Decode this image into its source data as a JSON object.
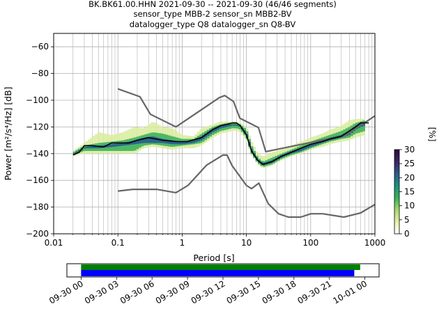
{
  "title_lines": [
    "BK.BK61.00.HHN   2021-09-30 -- 2021-09-30  (46/46 segments)",
    "sensor_type MBB-2 sensor_sn MBB2-BV",
    "datalogger_type Q8 datalogger_sn Q8-BV"
  ],
  "chart_data": {
    "type": "heatmap",
    "xlabel": "Period [s]",
    "ylabel": "Power [m²/s⁴/Hz] [dB]",
    "x_scale": "log",
    "xlim": [
      0.01,
      1000
    ],
    "ylim": [
      -200,
      -50
    ],
    "x_ticks": [
      0.01,
      0.1,
      1,
      10,
      100,
      1000
    ],
    "x_tick_labels": [
      "0.01",
      "0.1",
      "1",
      "10",
      "100",
      "1000"
    ],
    "y_ticks": [
      -200,
      -180,
      -160,
      -140,
      -120,
      -100,
      -80,
      -60
    ],
    "y_tick_labels": [
      "−200",
      "−180",
      "−160",
      "−140",
      "−120",
      "−100",
      "−80",
      "−60"
    ],
    "grid": true,
    "colorbar": {
      "label": "[%]",
      "range": [
        0,
        30
      ],
      "ticks": [
        0,
        5,
        10,
        15,
        20,
        25,
        30
      ],
      "tick_labels": [
        "0",
        "5",
        "10",
        "15",
        "20",
        "25",
        "30"
      ],
      "colormap": [
        "#ffffff",
        "#e3f0a8",
        "#a6d96a",
        "#33b35a",
        "#1f8f84",
        "#2a5a8c",
        "#3b2466",
        "#2d0b3d"
      ]
    },
    "series": [
      {
        "name": "noise model high",
        "style": "model",
        "color": "#666666",
        "x": [
          0.1,
          0.22,
          0.32,
          0.8,
          3.8,
          4.6,
          6.3,
          7.9,
          15.4,
          20,
          354.8,
          1000
        ],
        "y": [
          -91.5,
          -97.4,
          -110.5,
          -120,
          -98,
          -96.5,
          -101,
          -113.5,
          -120.5,
          -138.5,
          -126.2,
          -111.7
        ]
      },
      {
        "name": "noise model low",
        "style": "model",
        "color": "#666666",
        "x": [
          0.1,
          0.17,
          0.4,
          0.8,
          1.24,
          2.4,
          4.3,
          5,
          6,
          10,
          12,
          15.6,
          21.9,
          31.6,
          45,
          70,
          101,
          154,
          328,
          600,
          1000
        ],
        "y": [
          -168,
          -166.7,
          -166.7,
          -169.2,
          -163.7,
          -148.6,
          -141.1,
          -141.1,
          -149,
          -163.8,
          -166.2,
          -162.1,
          -177.5,
          -185,
          -187.5,
          -187.5,
          -185,
          -185,
          -187.5,
          -184.4,
          -178
        ]
      },
      {
        "name": "mean PSD",
        "style": "mean",
        "color": "#000000",
        "x": [
          0.02,
          0.025,
          0.03,
          0.04,
          0.06,
          0.08,
          0.1,
          0.15,
          0.2,
          0.3,
          0.5,
          0.8,
          1.2,
          2,
          3,
          4,
          5,
          6,
          7,
          8,
          10,
          12,
          15,
          18,
          25,
          35,
          50,
          70,
          100,
          150,
          200,
          300,
          400,
          500,
          600,
          800
        ],
        "y": [
          -141,
          -139,
          -134,
          -134,
          -135,
          -132,
          -132,
          -132,
          -130,
          -128,
          -130,
          -131,
          -131,
          -128,
          -122,
          -119,
          -118,
          -117,
          -117,
          -119,
          -126,
          -138,
          -145,
          -148,
          -146,
          -142,
          -139,
          -136,
          -133,
          -131,
          -129,
          -127,
          -123,
          -120,
          -117,
          -117
        ]
      }
    ],
    "density_bands": [
      {
        "level": "low",
        "x": [
          0.02,
          0.03,
          0.05,
          0.08,
          0.12,
          0.18,
          0.25,
          0.35,
          0.5,
          0.7,
          1,
          1.5,
          2,
          3,
          4,
          5,
          6,
          7,
          8,
          10,
          12,
          15,
          18,
          25,
          35,
          50,
          70,
          100,
          150,
          200,
          300,
          400,
          500,
          600,
          700
        ],
        "y_low": [
          -142,
          -140,
          -140,
          -140,
          -140,
          -140,
          -136,
          -135,
          -136,
          -137,
          -136,
          -136,
          -134,
          -128,
          -125,
          -124,
          -123,
          -123,
          -124,
          -130,
          -141,
          -148,
          -151,
          -149,
          -145,
          -142,
          -140,
          -137,
          -135,
          -133,
          -131,
          -130,
          -128,
          -127,
          -126
        ],
        "y_high": [
          -138,
          -132,
          -124,
          -126,
          -124,
          -120,
          -121,
          -116,
          -120,
          -121,
          -126,
          -127,
          -121,
          -118,
          -116,
          -116,
          -116,
          -116,
          -117,
          -120,
          -131,
          -140,
          -142,
          -139,
          -137,
          -134,
          -131,
          -128,
          -125,
          -122,
          -119,
          -115,
          -114,
          -114,
          -114
        ]
      },
      {
        "level": "mid",
        "x": [
          0.02,
          0.03,
          0.05,
          0.08,
          0.12,
          0.18,
          0.25,
          0.35,
          0.5,
          0.7,
          1,
          1.5,
          2,
          3,
          4,
          5,
          6,
          7,
          8,
          10,
          12,
          15,
          18,
          25,
          35,
          50,
          70,
          100,
          150,
          200,
          300,
          400,
          500,
          600,
          700
        ],
        "y_low": [
          -141,
          -138,
          -138,
          -138,
          -138,
          -138,
          -134,
          -133,
          -134,
          -135,
          -134,
          -133,
          -132,
          -126,
          -123,
          -122,
          -121,
          -121,
          -122,
          -128,
          -140,
          -147,
          -150,
          -148,
          -144,
          -141,
          -139,
          -136,
          -133,
          -131,
          -129,
          -128,
          -125,
          -124,
          -123
        ],
        "y_high": [
          -139,
          -134,
          -132,
          -131,
          -130,
          -128,
          -126,
          -124,
          -125,
          -127,
          -129,
          -129,
          -125,
          -120,
          -118,
          -117,
          -117,
          -117,
          -118,
          -122,
          -134,
          -143,
          -146,
          -143,
          -140,
          -137,
          -134,
          -131,
          -128,
          -126,
          -123,
          -120,
          -117,
          -116,
          -115
        ]
      },
      {
        "level": "high",
        "x": [
          0.02,
          0.03,
          0.05,
          0.08,
          0.12,
          0.18,
          0.25,
          0.35,
          0.5,
          0.7,
          1,
          1.5,
          2,
          3,
          4,
          5,
          6,
          7,
          8,
          10,
          12,
          15,
          18,
          25,
          35,
          50,
          70,
          100,
          150,
          200,
          300,
          400,
          500,
          600,
          700
        ],
        "y_low": [
          -141.5,
          -136,
          -136,
          -135,
          -134,
          -133,
          -132,
          -132,
          -132,
          -133,
          -133,
          -132,
          -130,
          -124,
          -121,
          -120,
          -119,
          -119,
          -120,
          -127,
          -139,
          -146,
          -149,
          -147,
          -143,
          -140,
          -138,
          -135,
          -132,
          -130,
          -128,
          -126,
          -122,
          -120,
          -119
        ],
        "y_high": [
          -140,
          -135,
          -134,
          -133,
          -132,
          -130,
          -128,
          -127,
          -129,
          -130,
          -131,
          -130,
          -127,
          -121,
          -119,
          -118,
          -118,
          -118,
          -119,
          -124,
          -136,
          -144,
          -147,
          -145,
          -141,
          -138,
          -136,
          -133,
          -130,
          -128,
          -126,
          -123,
          -119,
          -117,
          -117
        ]
      }
    ]
  },
  "timeline": {
    "tick_labels": [
      "09-30 00",
      "09-30 03",
      "09-30 06",
      "09-30 09",
      "09-30 12",
      "09-30 15",
      "09-30 18",
      "09-30 21",
      "10-01 00"
    ],
    "tick_hours": [
      0,
      3,
      6,
      9,
      12,
      15,
      18,
      21,
      24
    ],
    "range_hours": [
      -1.2,
      25.2
    ],
    "green_bar_hours": [
      0,
      23.6
    ],
    "blue_bar_hours": [
      0,
      23.1
    ],
    "green_color": "#008000",
    "blue_color": "#0000ff"
  }
}
